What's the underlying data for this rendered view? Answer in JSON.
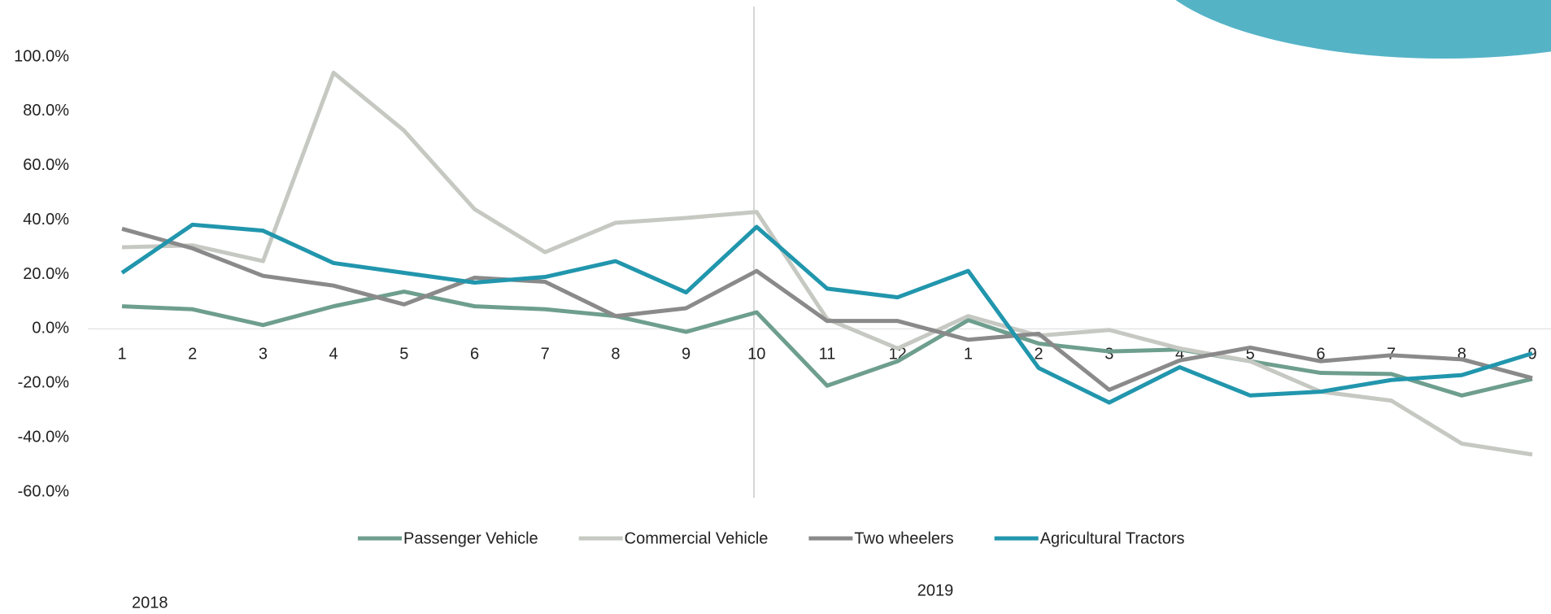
{
  "chart_data": {
    "type": "line",
    "categories": [
      "1",
      "2",
      "3",
      "4",
      "5",
      "6",
      "7",
      "8",
      "9",
      "10",
      "11",
      "12",
      "1",
      "2",
      "3",
      "4",
      "5",
      "6",
      "7",
      "8",
      "9"
    ],
    "series": [
      {
        "name": "Passenger Vehicle",
        "color": "#6e9e8e",
        "values": [
          8.3,
          7.2,
          1.4,
          8.3,
          13.7,
          8.3,
          7.2,
          4.7,
          -1.1,
          6.1,
          -20.9,
          -11.9,
          3.2,
          -5.4,
          -8.3,
          -7.6,
          -11.9,
          -16.2,
          -16.6,
          -24.5,
          -18.4
        ]
      },
      {
        "name": "Commercial Vehicle",
        "color": "#c6c8c2",
        "values": [
          30,
          30.7,
          24.9,
          94.2,
          72.9,
          44,
          28.2,
          39,
          40.8,
          43,
          3.6,
          -7.2,
          4.7,
          -2.5,
          -0.4,
          -7.2,
          -11.9,
          -23.1,
          -26.4,
          -42.2,
          -46.2
        ]
      },
      {
        "name": "Two wheelers",
        "color": "#8a8a8a",
        "values": [
          36.8,
          29.6,
          19.5,
          15.9,
          9,
          18.8,
          17.3,
          4.7,
          7.6,
          21.3,
          2.9,
          2.9,
          -4,
          -1.8,
          -22.4,
          -11.6,
          -6.9,
          -11.9,
          -9.7,
          -11.2,
          -18.1
        ]
      },
      {
        "name": "Agricultural Tractors",
        "color": "#2196ad",
        "values": [
          20.6,
          38.3,
          36.1,
          24.2,
          20.6,
          17,
          19.1,
          24.9,
          13.4,
          37.5,
          14.8,
          11.6,
          21.3,
          -14.4,
          -27.1,
          -14.1,
          -24.5,
          -23.1,
          -18.8,
          -17,
          -9
        ]
      }
    ],
    "ylim": [
      -60,
      100
    ],
    "yticks": [
      {
        "value": -60,
        "label": "-60.0%"
      },
      {
        "value": -40,
        "label": "-40.0%"
      },
      {
        "value": -20,
        "label": "-20.0%"
      },
      {
        "value": 0,
        "label": "0.0%"
      },
      {
        "value": 20,
        "label": "20.0%"
      },
      {
        "value": 40,
        "label": "40.0%"
      },
      {
        "value": 60,
        "label": "60.0%"
      },
      {
        "value": 80,
        "label": "80.0%"
      },
      {
        "value": 100,
        "label": "100.0%"
      }
    ],
    "annotations": [
      "2018",
      "2019"
    ],
    "legend": "bottom"
  }
}
